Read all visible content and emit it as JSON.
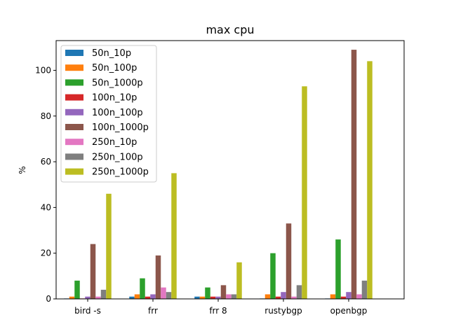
{
  "chart_data": {
    "type": "bar",
    "title": "max cpu",
    "xlabel": "",
    "ylabel": "%",
    "ylim": [
      0,
      113
    ],
    "yticks": [
      0,
      20,
      40,
      60,
      80,
      100
    ],
    "grid": false,
    "legend_position": "upper-left",
    "categories": [
      "bird -s",
      "frr",
      "frr 8",
      "rustybgp",
      "openbgp"
    ],
    "series": [
      {
        "name": "50n_10p",
        "color": "#1f77b4",
        "values": [
          0.2,
          1,
          1,
          0.2,
          0.2
        ]
      },
      {
        "name": "50n_100p",
        "color": "#ff7f0e",
        "values": [
          1,
          2,
          1,
          2,
          2
        ]
      },
      {
        "name": "50n_1000p",
        "color": "#2ca02c",
        "values": [
          8,
          9,
          5,
          20,
          26
        ]
      },
      {
        "name": "100n_10p",
        "color": "#d62728",
        "values": [
          0.2,
          1,
          1,
          1,
          1
        ]
      },
      {
        "name": "100n_100p",
        "color": "#9467bd",
        "values": [
          1,
          2,
          1,
          3,
          3
        ]
      },
      {
        "name": "100n_1000p",
        "color": "#8c564b",
        "values": [
          24,
          19,
          6,
          33,
          109
        ]
      },
      {
        "name": "250n_10p",
        "color": "#e377c2",
        "values": [
          1,
          5,
          2,
          1,
          2
        ]
      },
      {
        "name": "250n_100p",
        "color": "#7f7f7f",
        "values": [
          4,
          3,
          2,
          6,
          8
        ]
      },
      {
        "name": "250n_1000p",
        "color": "#bcbd22",
        "values": [
          46,
          55,
          16,
          93,
          104
        ]
      }
    ]
  }
}
